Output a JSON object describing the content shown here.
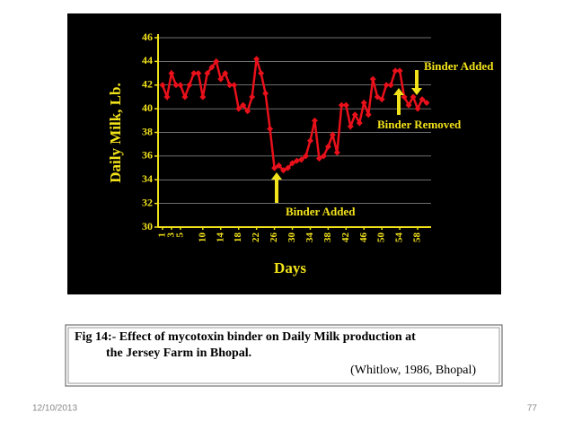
{
  "chart_data": {
    "type": "line",
    "y_label": "Daily Milk, Lb.",
    "x_label": "Days",
    "x": [
      1,
      2,
      3,
      4,
      5,
      6,
      7,
      8,
      9,
      10,
      11,
      12,
      13,
      14,
      15,
      16,
      17,
      18,
      19,
      20,
      21,
      22,
      23,
      24,
      25,
      26,
      27,
      28,
      29,
      30,
      31,
      32,
      33,
      34,
      35,
      36,
      37,
      38,
      39,
      40,
      41,
      42,
      43,
      44,
      45,
      46,
      47,
      48,
      49,
      50,
      51,
      52,
      53,
      54,
      55,
      56,
      57,
      58,
      59,
      60
    ],
    "series": [
      {
        "name": "Daily Milk",
        "color": "#e8101a",
        "values": [
          42,
          41,
          43,
          42,
          42,
          41,
          42,
          43,
          43,
          41,
          43,
          43.5,
          44,
          42.5,
          43,
          42,
          42,
          40,
          40.3,
          39.8,
          41,
          44.2,
          43,
          41.3,
          38.3,
          35,
          35.2,
          34.8,
          35,
          35.4,
          35.6,
          35.7,
          36,
          37.3,
          39,
          35.8,
          36,
          36.8,
          37.8,
          36.3,
          40.3,
          40.3,
          38.5,
          39.5,
          38.8,
          40.5,
          39.5,
          42.5,
          41,
          40.8,
          42,
          42,
          43.2,
          43.2,
          41,
          40.3,
          41,
          40,
          40.8,
          40.5
        ]
      }
    ],
    "xlim": [
      0,
      61
    ],
    "xticks": [
      1,
      3,
      5,
      10,
      14,
      18,
      22,
      26,
      30,
      34,
      38,
      42,
      46,
      50,
      54,
      58
    ],
    "ylim": [
      30,
      46
    ],
    "yticks": [
      30,
      32,
      34,
      36,
      38,
      40,
      42,
      44,
      46
    ],
    "grid": true,
    "annotations": [
      "Binder Added",
      "Binder Removed",
      "Binder Added"
    ]
  },
  "caption": {
    "lines": [
      "Fig 14:- Effect of mycotoxin binder on Daily Milk production at",
      "the Jersey Farm  in Bhopal."
    ],
    "source": "(Whitlow, 1986, Bhopal)"
  },
  "footer": {
    "date": "12/10/2013",
    "page": "77"
  }
}
